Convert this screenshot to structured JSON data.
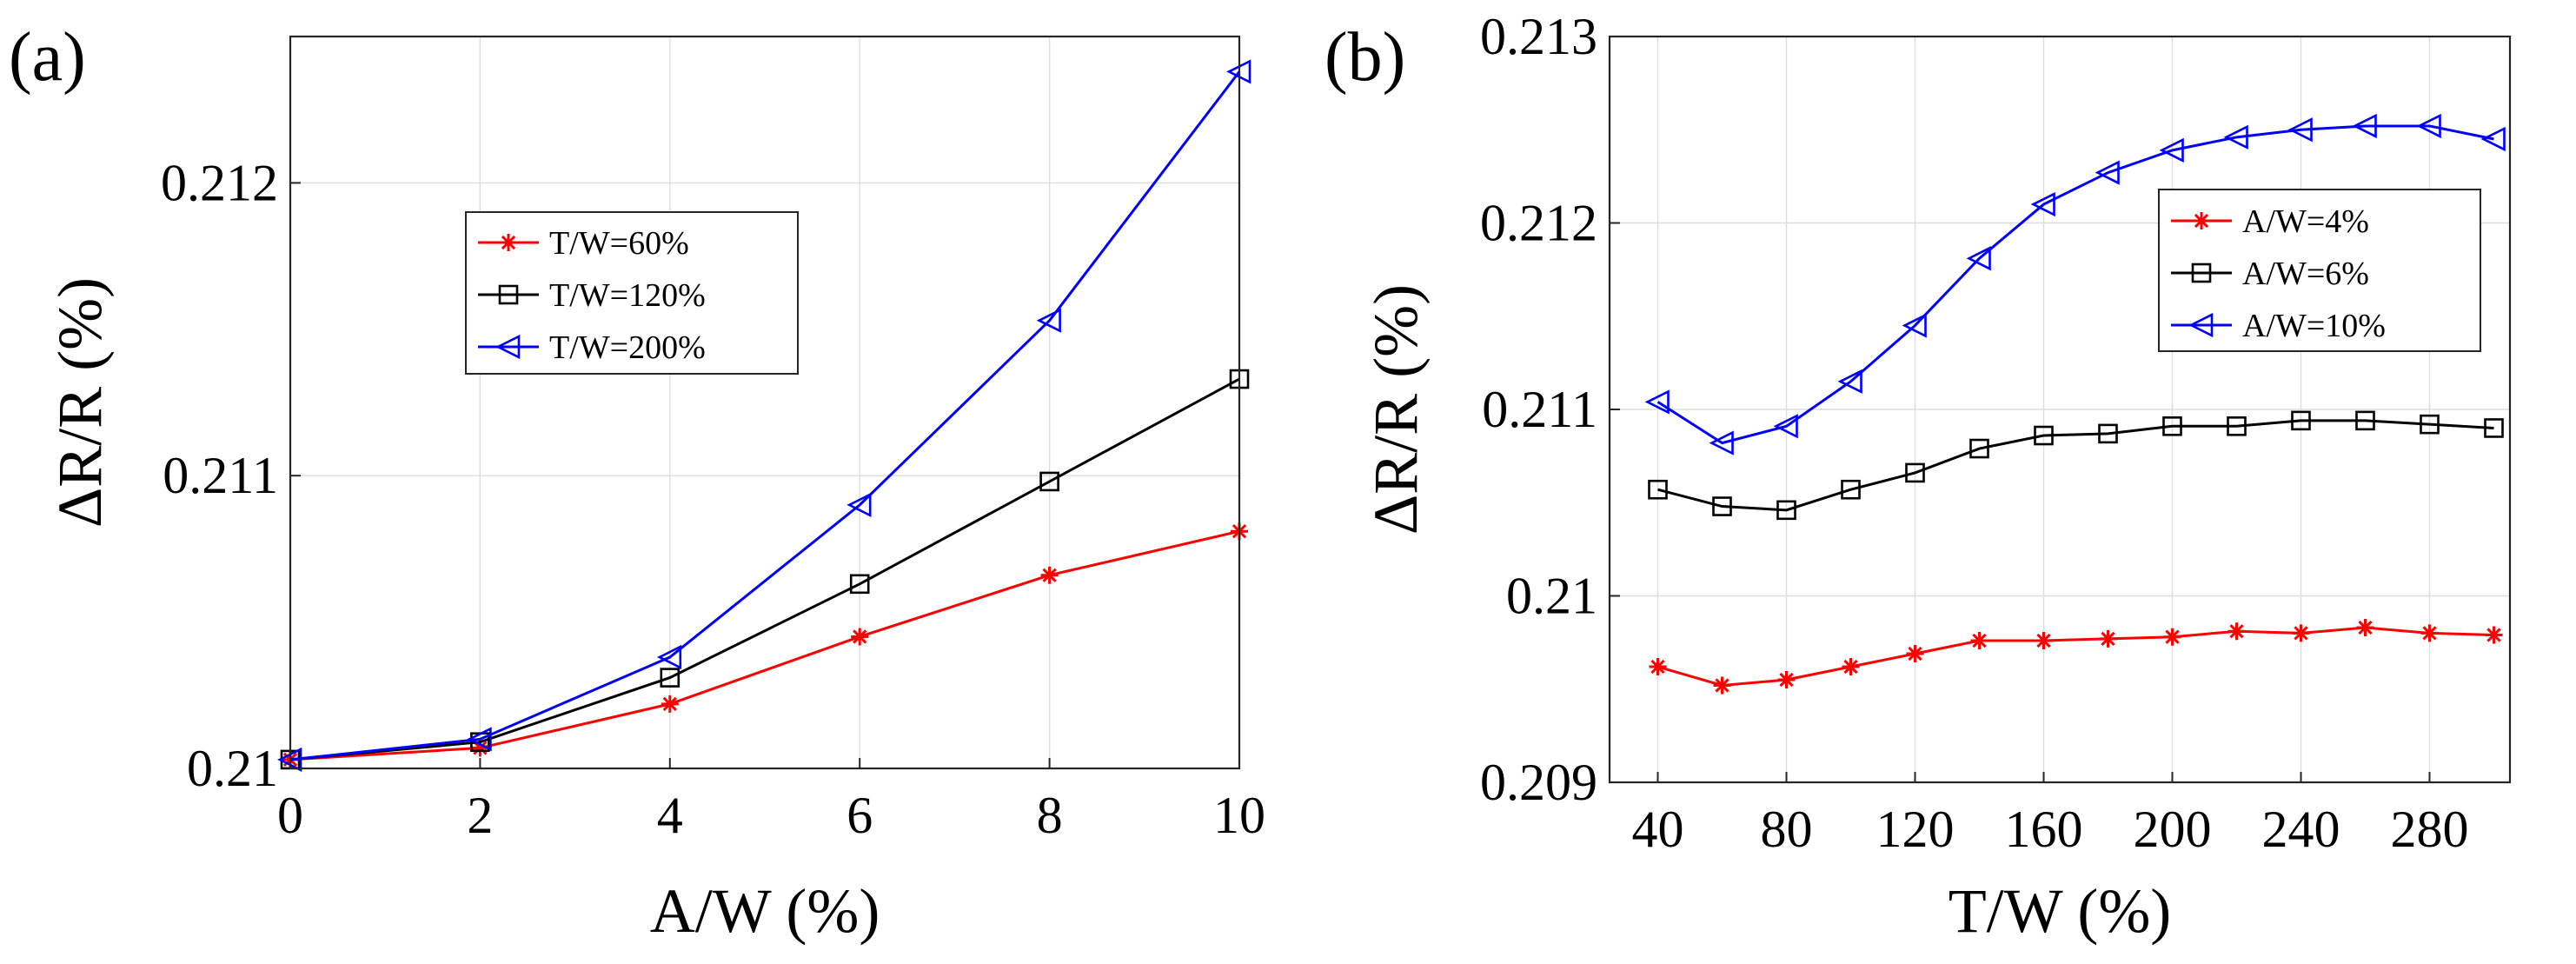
{
  "figure": {
    "caption_text": ""
  },
  "chart_data": [
    {
      "panel": "(a)",
      "type": "line",
      "xlabel": "A/W (%)",
      "ylabel": "ΔR/R (%)",
      "xlim": [
        0,
        10
      ],
      "ylim": [
        0.21,
        0.2125
      ],
      "xticks": [
        0,
        2,
        4,
        6,
        8,
        10
      ],
      "xtick_labels": [
        "0",
        "2",
        "4",
        "6",
        "8",
        "10"
      ],
      "yticks": [
        0.21,
        0.211,
        0.212
      ],
      "ytick_labels": [
        "0.21",
        "0.211",
        "0.212"
      ],
      "grid": true,
      "legend_position": "upper-left-center",
      "x": [
        0,
        2,
        4,
        6,
        8,
        10
      ],
      "series": [
        {
          "name": "T/W=60%",
          "color": "#ff0000",
          "marker": "asterisk",
          "values": [
            0.21003,
            0.21007,
            0.21022,
            0.21045,
            0.21066,
            0.21081
          ]
        },
        {
          "name": "T/W=120%",
          "color": "#000000",
          "marker": "square",
          "values": [
            0.21003,
            0.21009,
            0.21031,
            0.21063,
            0.21098,
            0.21133
          ]
        },
        {
          "name": "T/W=200%",
          "color": "#0000ff",
          "marker": "triangle-left",
          "values": [
            0.21003,
            0.2101,
            0.21038,
            0.2109,
            0.21153,
            0.21238
          ]
        }
      ]
    },
    {
      "panel": "(b)",
      "type": "line",
      "xlabel": "T/W (%)",
      "ylabel": "ΔR/R (%)",
      "xlim": [
        25,
        305
      ],
      "ylim": [
        0.209,
        0.213
      ],
      "xticks": [
        40,
        80,
        120,
        160,
        200,
        240,
        280
      ],
      "xtick_labels": [
        "40",
        "80",
        "120",
        "160",
        "200",
        "240",
        "280"
      ],
      "yticks": [
        0.209,
        0.21,
        0.211,
        0.212,
        0.213
      ],
      "ytick_labels": [
        "0.209",
        "0.21",
        "0.211",
        "0.212",
        "0.213"
      ],
      "grid": true,
      "legend_position": "upper-right",
      "x": [
        40,
        60,
        80,
        100,
        120,
        140,
        160,
        180,
        200,
        220,
        240,
        260,
        280,
        300
      ],
      "series": [
        {
          "name": "A/W=4%",
          "color": "#ff0000",
          "marker": "asterisk",
          "values": [
            0.20962,
            0.20952,
            0.20955,
            0.20962,
            0.20969,
            0.20976,
            0.20976,
            0.20977,
            0.20978,
            0.20981,
            0.2098,
            0.20983,
            0.2098,
            0.20979
          ]
        },
        {
          "name": "A/W=6%",
          "color": "#000000",
          "marker": "square",
          "values": [
            0.21057,
            0.21048,
            0.21046,
            0.21057,
            0.21066,
            0.21079,
            0.21086,
            0.21087,
            0.21091,
            0.21091,
            0.21094,
            0.21094,
            0.21092,
            0.2109
          ]
        },
        {
          "name": "A/W=10%",
          "color": "#0000ff",
          "marker": "triangle-left",
          "values": [
            0.21104,
            0.21082,
            0.21091,
            0.21115,
            0.21145,
            0.21181,
            0.2121,
            0.21227,
            0.21239,
            0.21246,
            0.2125,
            0.21252,
            0.21252,
            0.21245
          ]
        }
      ]
    }
  ]
}
